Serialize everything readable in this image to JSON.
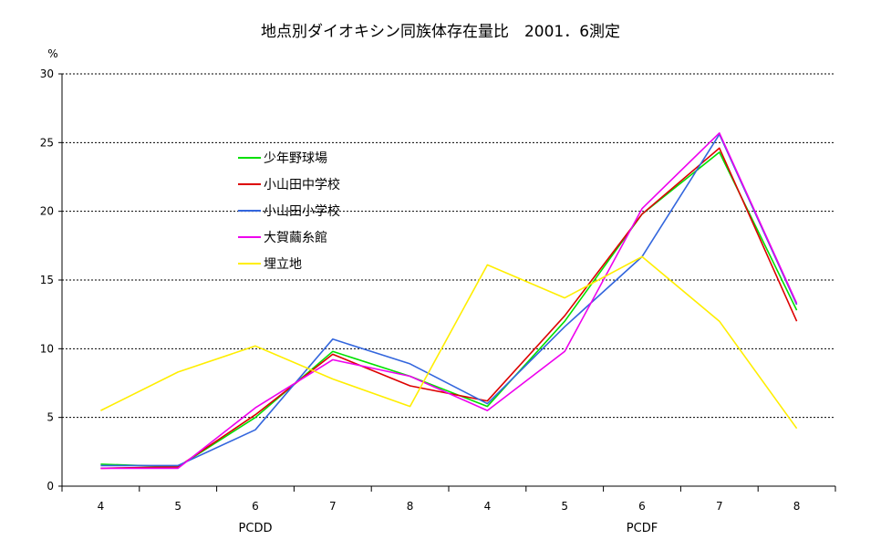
{
  "chart_data": {
    "type": "line",
    "title": "地点別ダイオキシン同族体存在量比　2001．6測定",
    "ylabel": "%",
    "ylim": [
      0,
      30
    ],
    "yticks": [
      "0",
      "5",
      "10",
      "15",
      "20",
      "25",
      "30"
    ],
    "categories": [
      "4",
      "5",
      "6",
      "7",
      "8",
      "4",
      "5",
      "6",
      "7",
      "8"
    ],
    "groups": [
      "PCDD",
      "PCDF"
    ],
    "grid": "horizontal dashed",
    "legend_position": "upper-left inside plot",
    "series": [
      {
        "name": "少年野球場",
        "color": "#00e000",
        "values": [
          1.6,
          1.4,
          5.0,
          9.8,
          8.0,
          5.8,
          12.0,
          19.8,
          24.3,
          12.8
        ]
      },
      {
        "name": "小山田中学校",
        "color": "#dd0000",
        "values": [
          1.3,
          1.4,
          5.2,
          9.6,
          7.3,
          6.2,
          12.4,
          19.8,
          24.6,
          12.0
        ]
      },
      {
        "name": "小山田小学校",
        "color": "#3366dd",
        "values": [
          1.5,
          1.5,
          4.1,
          10.7,
          8.9,
          6.0,
          11.6,
          16.7,
          25.6,
          13.2
        ]
      },
      {
        "name": "大賀繭糸館",
        "color": "#ee00ee",
        "values": [
          1.3,
          1.3,
          5.7,
          9.2,
          8.0,
          5.5,
          9.8,
          20.2,
          25.7,
          13.3
        ]
      },
      {
        "name": "埋立地",
        "color": "#ffee00",
        "values": [
          5.5,
          8.3,
          10.2,
          7.8,
          5.8,
          16.1,
          13.7,
          16.7,
          12.0,
          4.2
        ]
      }
    ]
  }
}
